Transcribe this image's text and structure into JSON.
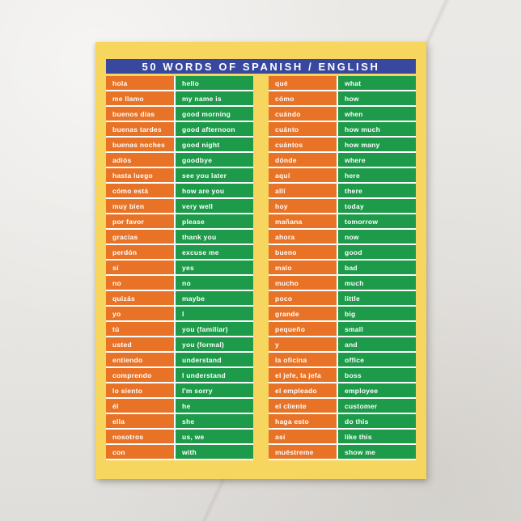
{
  "postcard": {
    "title": "50 WORDS OF SPANISH / ENGLISH",
    "colors": {
      "surface": "#e9e7e4",
      "card": "#f6d65e",
      "title_bar": "#39489f",
      "spanish_cell": "#e87327",
      "english_cell": "#1e9b4a",
      "divider": "#ffffff",
      "text": "#ffffff"
    },
    "columns": {
      "left": [
        {
          "es": "hola",
          "en": "hello"
        },
        {
          "es": "me llamo",
          "en": "my name is"
        },
        {
          "es": "buenos días",
          "en": "good morning"
        },
        {
          "es": "buenas tardes",
          "en": "good afternoon"
        },
        {
          "es": "buenas noches",
          "en": "good night"
        },
        {
          "es": "adiós",
          "en": "goodbye"
        },
        {
          "es": "hasta luego",
          "en": "see you later"
        },
        {
          "es": "cómo está",
          "en": "how are you"
        },
        {
          "es": "muy bien",
          "en": "very well"
        },
        {
          "es": "por favor",
          "en": "please"
        },
        {
          "es": "gracias",
          "en": "thank you"
        },
        {
          "es": "perdón",
          "en": "excuse me"
        },
        {
          "es": "sí",
          "en": "yes"
        },
        {
          "es": "no",
          "en": "no"
        },
        {
          "es": "quizás",
          "en": "maybe"
        },
        {
          "es": "yo",
          "en": "I"
        },
        {
          "es": "tú",
          "en": "you (familiar)"
        },
        {
          "es": "usted",
          "en": "you (formal)"
        },
        {
          "es": "entiendo",
          "en": "understand"
        },
        {
          "es": "comprendo",
          "en": "I understand"
        },
        {
          "es": "lo siento",
          "en": "I'm sorry"
        },
        {
          "es": "él",
          "en": "he"
        },
        {
          "es": "ella",
          "en": "she"
        },
        {
          "es": "nosotros",
          "en": "us, we"
        },
        {
          "es": "con",
          "en": "with"
        }
      ],
      "right": [
        {
          "es": "qué",
          "en": "what"
        },
        {
          "es": "cómo",
          "en": "how"
        },
        {
          "es": "cuándo",
          "en": "when"
        },
        {
          "es": "cuánto",
          "en": "how much"
        },
        {
          "es": "cuántos",
          "en": "how many"
        },
        {
          "es": "dónde",
          "en": "where"
        },
        {
          "es": "aquí",
          "en": "here"
        },
        {
          "es": "allí",
          "en": "there"
        },
        {
          "es": "hoy",
          "en": "today"
        },
        {
          "es": "mañana",
          "en": "tomorrow"
        },
        {
          "es": "ahora",
          "en": "now"
        },
        {
          "es": "bueno",
          "en": "good"
        },
        {
          "es": "malo",
          "en": "bad"
        },
        {
          "es": "mucho",
          "en": "much"
        },
        {
          "es": "poco",
          "en": "little"
        },
        {
          "es": "grande",
          "en": "big"
        },
        {
          "es": "pequeño",
          "en": "small"
        },
        {
          "es": "y",
          "en": "and"
        },
        {
          "es": "la oficina",
          "en": "office"
        },
        {
          "es": "el jefe, la jefa",
          "en": "boss"
        },
        {
          "es": "el empleado",
          "en": "employee"
        },
        {
          "es": "el cliente",
          "en": "customer"
        },
        {
          "es": "haga esto",
          "en": "do this"
        },
        {
          "es": "así",
          "en": "like this"
        },
        {
          "es": "muéstreme",
          "en": "show me"
        }
      ]
    }
  }
}
